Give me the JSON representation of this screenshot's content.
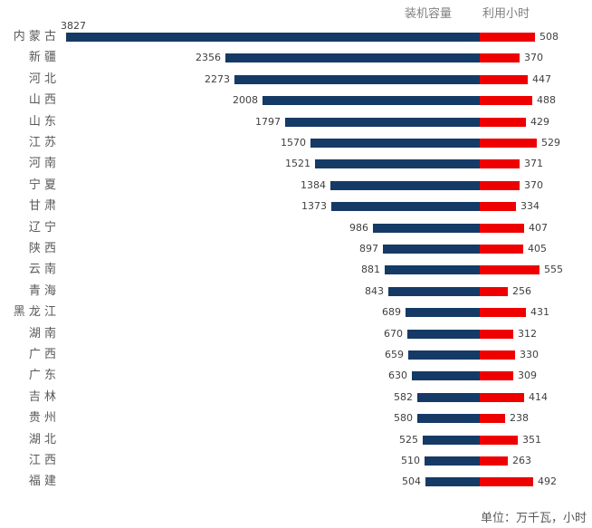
{
  "legend": {
    "capacity_label": "装机容量",
    "hours_label": "利用小时"
  },
  "footer": {
    "unit_note": "单位：万千瓦，小时"
  },
  "colors": {
    "capacity_bar": "#153a66",
    "hours_bar": "#ee0000",
    "category_text": "#595959",
    "value_text": "#404040",
    "legend_text": "#808080"
  },
  "chart_data": {
    "type": "bar",
    "variant": "diverging-horizontal-tornado",
    "title": "",
    "unit_note": "单位：万千瓦，小时",
    "categories": [
      "内蒙古",
      "新疆",
      "河北",
      "山西",
      "山东",
      "江苏",
      "河南",
      "宁夏",
      "甘肃",
      "辽宁",
      "陕西",
      "云南",
      "青海",
      "黑龙江",
      "湖南",
      "广西",
      "广东",
      "吉林",
      "贵州",
      "湖北",
      "江西",
      "福建"
    ],
    "series": [
      {
        "name": "装机容量",
        "direction": "left",
        "color": "#153a66",
        "values": [
          3827,
          2356,
          2273,
          2008,
          1797,
          1570,
          1521,
          1384,
          1373,
          986,
          897,
          881,
          843,
          689,
          670,
          659,
          630,
          582,
          580,
          525,
          510,
          504
        ]
      },
      {
        "name": "利用小时",
        "direction": "right",
        "color": "#ee0000",
        "values": [
          508,
          370,
          447,
          488,
          429,
          529,
          371,
          370,
          334,
          407,
          405,
          555,
          256,
          431,
          312,
          330,
          309,
          414,
          238,
          351,
          263,
          492
        ]
      }
    ],
    "value_labels": "outside-end",
    "axis": "hidden",
    "grid": false,
    "legend_position": "top-right",
    "value_range_hint": [
      0,
      3827
    ]
  }
}
